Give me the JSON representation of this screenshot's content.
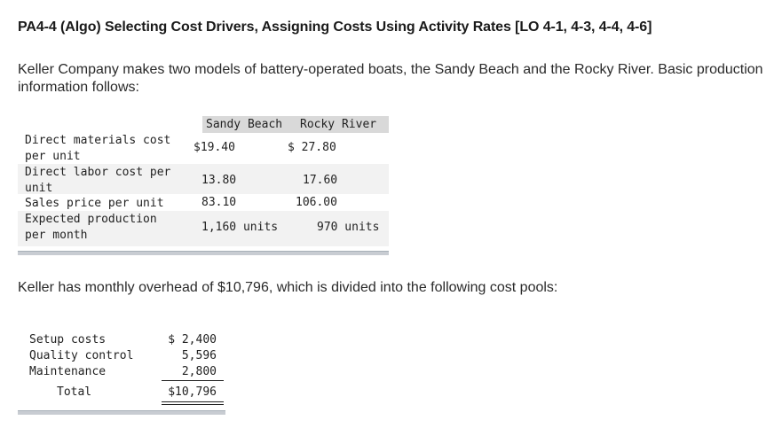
{
  "title": "PA4-4 (Algo) Selecting Cost Drivers, Assigning Costs Using Activity Rates [LO 4-1, 4-3, 4-4, 4-6]",
  "intro": "Keller Company makes two models of battery-operated boats, the Sandy Beach and the Rocky River. Basic production information follows:",
  "production_table": {
    "headers": [
      "Sandy Beach",
      "Rocky River"
    ],
    "rows": [
      {
        "label_1": "Direct materials cost",
        "label_2": "per unit",
        "sandy": "$19.40",
        "rocky": "$ 27.80"
      },
      {
        "label_1": "Direct labor cost per",
        "label_2": "unit",
        "sandy": "13.80",
        "rocky": "17.60"
      },
      {
        "label_1": "Sales price per unit",
        "label_2": "",
        "sandy": "83.10",
        "rocky": "106.00"
      },
      {
        "label_1": "Expected production",
        "label_2": "per month",
        "sandy": "1,160 units",
        "rocky": "970 units"
      }
    ]
  },
  "overhead_text": "Keller has monthly overhead of $10,796, which is divided into the following cost pools:",
  "cost_pools": {
    "rows": [
      {
        "label": "Setup costs",
        "amount": "$ 2,400"
      },
      {
        "label": "Quality control",
        "amount": "5,596"
      },
      {
        "label": "Maintenance",
        "amount": "2,800"
      }
    ],
    "total_label": "Total",
    "total_amount": "$10,796"
  }
}
